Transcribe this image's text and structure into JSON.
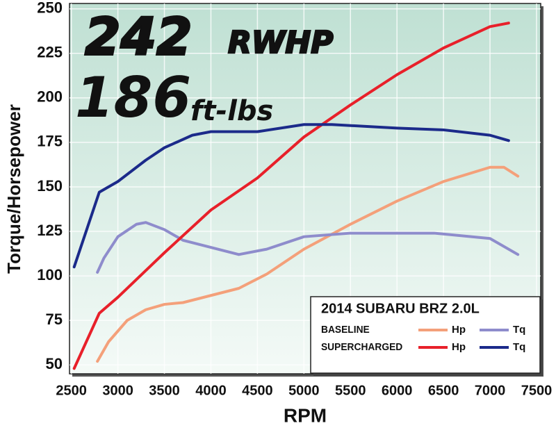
{
  "chart_data": {
    "type": "line",
    "headline": {
      "hp": "242",
      "hp_unit": "RWHP",
      "tq": "186",
      "tq_unit": "ft-lbs"
    },
    "x_label": "RPM",
    "y_label": "Torque/Horsepower",
    "legend": {
      "title": "2014 SUBARU BRZ 2.0L",
      "position": "lower right"
    },
    "xlim": [
      2480,
      7545
    ],
    "xticks": [
      2500,
      3000,
      3500,
      4000,
      4500,
      5000,
      5500,
      6000,
      6500,
      7000,
      7500
    ],
    "ylim": [
      45,
      253
    ],
    "yticks": [
      50,
      75,
      100,
      125,
      150,
      175,
      200,
      225,
      250
    ],
    "grid": true,
    "series": [
      {
        "name": "Hp",
        "group": "BASELINE",
        "color": "#f4a07a",
        "x": [
          2780,
          2900,
          3100,
          3300,
          3500,
          3700,
          4000,
          4300,
          4600,
          5000,
          5500,
          6000,
          6500,
          7000,
          7150,
          7300
        ],
        "values": [
          52,
          63,
          75,
          81,
          84,
          85,
          89,
          93,
          101,
          115,
          129,
          142,
          153,
          161,
          161,
          156
        ]
      },
      {
        "name": "Tq",
        "group": "BASELINE",
        "color": "#8e8ccc",
        "x": [
          2780,
          2850,
          3000,
          3200,
          3300,
          3500,
          3700,
          4000,
          4300,
          4600,
          5000,
          5500,
          6000,
          6400,
          7000,
          7300
        ],
        "values": [
          102,
          110,
          122,
          129,
          130,
          126,
          120,
          116,
          112,
          115,
          122,
          124,
          124,
          124,
          121,
          112
        ]
      },
      {
        "name": "Hp",
        "group": "SUPERCHARGED",
        "color": "#e8202a",
        "x": [
          2530,
          2800,
          3000,
          3500,
          4000,
          4500,
          5000,
          5500,
          6000,
          6500,
          7000,
          7200
        ],
        "values": [
          48,
          79,
          88,
          113,
          137,
          155,
          178,
          196,
          213,
          228,
          240,
          242
        ]
      },
      {
        "name": "Tq",
        "group": "SUPERCHARGED",
        "color": "#1b2a8a",
        "x": [
          2530,
          2800,
          3000,
          3300,
          3500,
          3800,
          4000,
          4500,
          5000,
          5300,
          6000,
          6500,
          7000,
          7200
        ],
        "values": [
          105,
          147,
          153,
          165,
          172,
          179,
          181,
          181,
          185,
          185,
          183,
          182,
          179,
          176
        ]
      }
    ]
  }
}
